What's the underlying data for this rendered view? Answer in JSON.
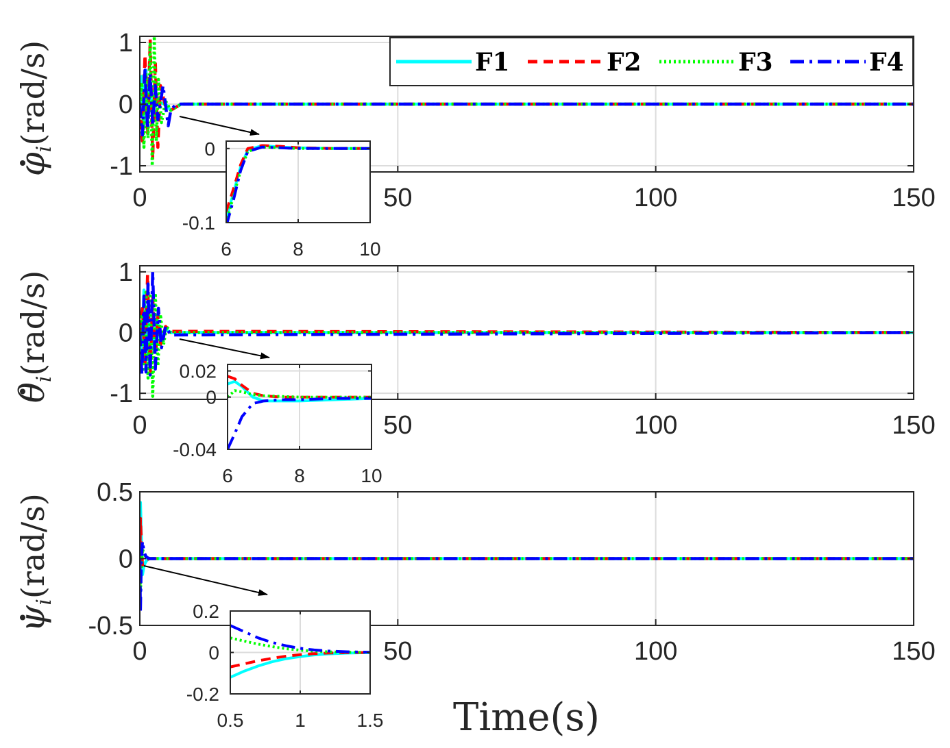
{
  "colors": {
    "F1": "#00ffff",
    "F2": "#ff0000",
    "F3": "#00ff00",
    "F4": "#0000ff",
    "grid": "#dcdcdc",
    "axis": "#262626"
  },
  "legend": {
    "placement": "top-right",
    "entries": [
      "F1",
      "F2",
      "F3",
      "F4"
    ]
  },
  "xlabel": "Time(s)",
  "chart_data": [
    {
      "type": "line",
      "ylabel_symbol": "φ",
      "ylabel_sub": "i",
      "ylabel_unit": "(rad/s)",
      "xlim": [
        0,
        150
      ],
      "ylim": [
        -1.1,
        1.1
      ],
      "xticks": [
        0,
        50,
        100,
        150
      ],
      "yticks": [
        -1,
        0,
        1
      ],
      "xtick_labels": [
        "0",
        "50",
        "100",
        "150"
      ],
      "ytick_labels": [
        "-1",
        "0",
        "1"
      ],
      "grid": true,
      "series": [
        {
          "name": "F1",
          "x": [
            0,
            0.4,
            0.8,
            1.2,
            1.6,
            2.0,
            2.4,
            2.8,
            3.2,
            4,
            5,
            6,
            8,
            150
          ],
          "y": [
            0,
            0.45,
            -0.35,
            0.55,
            -0.2,
            0.3,
            -0.15,
            0.1,
            0.0,
            0.02,
            0.0,
            -0.1,
            0,
            0
          ]
        },
        {
          "name": "F2",
          "x": [
            0,
            0.5,
            1.0,
            1.5,
            2.0,
            2.5,
            3.0,
            3.5,
            4,
            5,
            6,
            8,
            150
          ],
          "y": [
            0,
            -0.6,
            0.8,
            -0.5,
            1.05,
            -0.9,
            0.7,
            -0.7,
            0.3,
            -0.05,
            -0.1,
            0,
            0
          ]
        },
        {
          "name": "F3",
          "x": [
            0,
            0.4,
            0.8,
            1.2,
            1.6,
            2.0,
            2.4,
            2.8,
            3.2,
            3.6,
            4.2,
            5,
            6,
            8,
            150
          ],
          "y": [
            0,
            0.35,
            -0.7,
            0.5,
            -0.55,
            1.0,
            -1.0,
            1.1,
            -0.6,
            0.4,
            -0.3,
            0.05,
            -0.1,
            0,
            0
          ]
        },
        {
          "name": "F4",
          "x": [
            0,
            0.5,
            1.0,
            1.5,
            2.0,
            2.5,
            3.0,
            3.5,
            4.5,
            5.5,
            6,
            7,
            8,
            150
          ],
          "y": [
            0,
            -0.5,
            0.55,
            -0.4,
            0.5,
            -0.35,
            0.3,
            -0.25,
            0.3,
            -0.35,
            -0.1,
            0,
            0,
            0
          ]
        }
      ],
      "inset": {
        "xlim": [
          6,
          10
        ],
        "ylim": [
          -0.1,
          0.01
        ],
        "xticks": [
          6,
          8,
          10
        ],
        "yticks": [
          -0.1,
          0
        ],
        "xtick_labels": [
          "6",
          "8",
          "10"
        ],
        "ytick_labels": [
          "-0.1",
          "0"
        ],
        "series": [
          {
            "name": "F1",
            "x": [
              6,
              6.2,
              6.4,
              6.6,
              7,
              7.5,
              8,
              9,
              10
            ],
            "y": [
              -0.095,
              -0.06,
              -0.025,
              -0.002,
              0.004,
              0.002,
              0.001,
              0.0,
              0.0
            ]
          },
          {
            "name": "F2",
            "x": [
              6,
              6.2,
              6.4,
              6.6,
              7,
              7.5,
              8,
              9,
              10
            ],
            "y": [
              -0.085,
              -0.055,
              -0.022,
              0.0,
              0.004,
              0.003,
              0.001,
              0.0,
              0.0
            ]
          },
          {
            "name": "F3",
            "x": [
              6,
              6.2,
              6.4,
              6.6,
              7,
              7.5,
              8,
              9,
              10
            ],
            "y": [
              -0.1,
              -0.065,
              -0.03,
              -0.004,
              0.002,
              0.001,
              0.0,
              0.0,
              0.0
            ]
          },
          {
            "name": "F4",
            "x": [
              6,
              6.2,
              6.4,
              6.6,
              7,
              7.5,
              8,
              9,
              10
            ],
            "y": [
              -0.105,
              -0.07,
              -0.03,
              -0.004,
              0.002,
              0.001,
              0.0,
              0.0,
              0.0
            ]
          }
        ]
      }
    },
    {
      "type": "line",
      "ylabel_symbol": "θ",
      "ylabel_sub": "i",
      "ylabel_unit": "(rad/s)",
      "xlim": [
        0,
        150
      ],
      "ylim": [
        -1.1,
        1.1
      ],
      "xticks": [
        0,
        50,
        100,
        150
      ],
      "yticks": [
        -1,
        0,
        1
      ],
      "xtick_labels": [
        "0",
        "50",
        "100",
        "150"
      ],
      "ytick_labels": [
        "-1",
        "0",
        "1"
      ],
      "grid": true,
      "series": [
        {
          "name": "F1",
          "x": [
            0,
            0.4,
            0.8,
            1.2,
            1.6,
            2.0,
            2.4,
            2.8,
            3.4,
            4,
            5,
            6,
            150
          ],
          "y": [
            0,
            -0.5,
            0.7,
            -0.6,
            0.5,
            -0.45,
            0.4,
            -0.3,
            0.2,
            -0.1,
            0.05,
            0.0,
            0
          ]
        },
        {
          "name": "F2",
          "x": [
            0,
            0.5,
            1.0,
            1.5,
            2.0,
            2.5,
            3.0,
            3.5,
            4,
            5,
            6,
            150
          ],
          "y": [
            0,
            0.4,
            -0.5,
            0.95,
            -0.7,
            0.6,
            -0.5,
            0.3,
            -0.2,
            0.1,
            0.02,
            0
          ]
        },
        {
          "name": "F3",
          "x": [
            0,
            0.4,
            0.8,
            1.2,
            1.6,
            2.0,
            2.5,
            3.0,
            3.5,
            4.0,
            4.6,
            5.2,
            6,
            150
          ],
          "y": [
            0,
            0.3,
            -0.6,
            0.7,
            -0.75,
            0.6,
            -1.05,
            0.65,
            -0.55,
            0.3,
            -0.2,
            0.1,
            0.0,
            0
          ]
        },
        {
          "name": "F4",
          "x": [
            0,
            0.4,
            0.8,
            1.2,
            1.6,
            2.0,
            2.5,
            3.0,
            3.6,
            4.2,
            5,
            6,
            150
          ],
          "y": [
            0,
            -0.7,
            0.6,
            -0.65,
            0.8,
            -0.7,
            1.0,
            -0.6,
            0.4,
            -0.25,
            0.1,
            -0.04,
            0
          ]
        }
      ],
      "inset": {
        "xlim": [
          6,
          10
        ],
        "ylim": [
          -0.04,
          0.025
        ],
        "xticks": [
          6,
          8,
          10
        ],
        "yticks": [
          -0.04,
          0,
          0.02
        ],
        "xtick_labels": [
          "6",
          "8",
          "10"
        ],
        "ytick_labels": [
          "-0.04",
          "0",
          "0.02"
        ],
        "series": [
          {
            "name": "F1",
            "x": [
              6,
              6.2,
              6.4,
              6.7,
              7,
              7.5,
              8,
              9,
              10
            ],
            "y": [
              0.01,
              0.012,
              0.008,
              0.0,
              -0.003,
              -0.003,
              -0.003,
              -0.002,
              -0.001
            ]
          },
          {
            "name": "F2",
            "x": [
              6,
              6.2,
              6.4,
              6.7,
              7,
              7.5,
              8,
              9,
              10
            ],
            "y": [
              0.016,
              0.014,
              0.009,
              0.003,
              0.001,
              0.0,
              0.0,
              0.0,
              0.0
            ]
          },
          {
            "name": "F3",
            "x": [
              6,
              6.2,
              6.4,
              6.7,
              7,
              7.5,
              8,
              9,
              10
            ],
            "y": [
              0.0,
              0.005,
              0.004,
              0.002,
              0.001,
              0.0005,
              0.0,
              0.0,
              0.0
            ]
          },
          {
            "name": "F4",
            "x": [
              6,
              6.2,
              6.4,
              6.7,
              7,
              7.5,
              8,
              9,
              10
            ],
            "y": [
              -0.04,
              -0.028,
              -0.015,
              -0.005,
              -0.003,
              -0.002,
              -0.002,
              -0.001,
              -0.001
            ]
          }
        ]
      }
    },
    {
      "type": "line",
      "ylabel_symbol": "ψ",
      "ylabel_sub": "i",
      "ylabel_unit": "(rad/s)",
      "xlim": [
        0,
        150
      ],
      "ylim": [
        -0.5,
        0.5
      ],
      "xticks": [
        0,
        50,
        100,
        150
      ],
      "yticks": [
        -0.5,
        0,
        0.5
      ],
      "xtick_labels": [
        "0",
        "50",
        "100",
        "150"
      ],
      "ytick_labels": [
        "-0.5",
        "0",
        "0.5"
      ],
      "grid": true,
      "series": [
        {
          "name": "F1",
          "x": [
            0,
            0.1,
            0.25,
            0.5,
            0.8,
            1.2,
            1.6,
            2,
            150
          ],
          "y": [
            0,
            0.42,
            0.2,
            -0.12,
            -0.05,
            -0.02,
            -0.005,
            0,
            0
          ]
        },
        {
          "name": "F2",
          "x": [
            0,
            0.1,
            0.25,
            0.5,
            0.8,
            1.2,
            1.6,
            2,
            150
          ],
          "y": [
            0,
            0.3,
            0.15,
            -0.05,
            -0.03,
            -0.01,
            -0.003,
            0,
            0
          ]
        },
        {
          "name": "F3",
          "x": [
            0,
            0.1,
            0.25,
            0.5,
            0.8,
            1.2,
            1.6,
            2,
            150
          ],
          "y": [
            0,
            -0.25,
            -0.1,
            0.07,
            0.04,
            0.01,
            0.003,
            0,
            0
          ]
        },
        {
          "name": "F4",
          "x": [
            0,
            0.1,
            0.25,
            0.5,
            0.8,
            1.2,
            1.6,
            2,
            150
          ],
          "y": [
            0,
            -0.4,
            -0.05,
            0.13,
            0.05,
            0.015,
            0.004,
            0,
            0
          ]
        }
      ],
      "inset": {
        "xlim": [
          0.5,
          1.5
        ],
        "ylim": [
          -0.2,
          0.2
        ],
        "xticks": [
          0.5,
          1,
          1.5
        ],
        "yticks": [
          -0.2,
          0,
          0.2
        ],
        "xtick_labels": [
          "0.5",
          "1",
          "1.5"
        ],
        "ytick_labels": [
          "-0.2",
          "0",
          "0.2"
        ],
        "series": [
          {
            "name": "F1",
            "x": [
              0.5,
              0.6,
              0.7,
              0.8,
              0.9,
              1.0,
              1.1,
              1.2,
              1.35,
              1.5
            ],
            "y": [
              -0.12,
              -0.09,
              -0.065,
              -0.045,
              -0.03,
              -0.02,
              -0.012,
              -0.007,
              -0.003,
              -0.001
            ]
          },
          {
            "name": "F2",
            "x": [
              0.5,
              0.6,
              0.7,
              0.8,
              0.9,
              1.0,
              1.1,
              1.2,
              1.35,
              1.5
            ],
            "y": [
              -0.07,
              -0.055,
              -0.04,
              -0.028,
              -0.018,
              -0.011,
              -0.006,
              -0.003,
              -0.001,
              0.0
            ]
          },
          {
            "name": "F3",
            "x": [
              0.5,
              0.6,
              0.7,
              0.8,
              0.9,
              1.0,
              1.1,
              1.2,
              1.35,
              1.5
            ],
            "y": [
              0.07,
              0.055,
              0.04,
              0.028,
              0.018,
              0.011,
              0.006,
              0.003,
              0.001,
              0.0
            ]
          },
          {
            "name": "F4",
            "x": [
              0.5,
              0.6,
              0.7,
              0.8,
              0.9,
              1.0,
              1.1,
              1.2,
              1.35,
              1.5
            ],
            "y": [
              0.13,
              0.1,
              0.07,
              0.048,
              0.032,
              0.02,
              0.012,
              0.007,
              0.003,
              0.001
            ]
          }
        ]
      }
    }
  ]
}
